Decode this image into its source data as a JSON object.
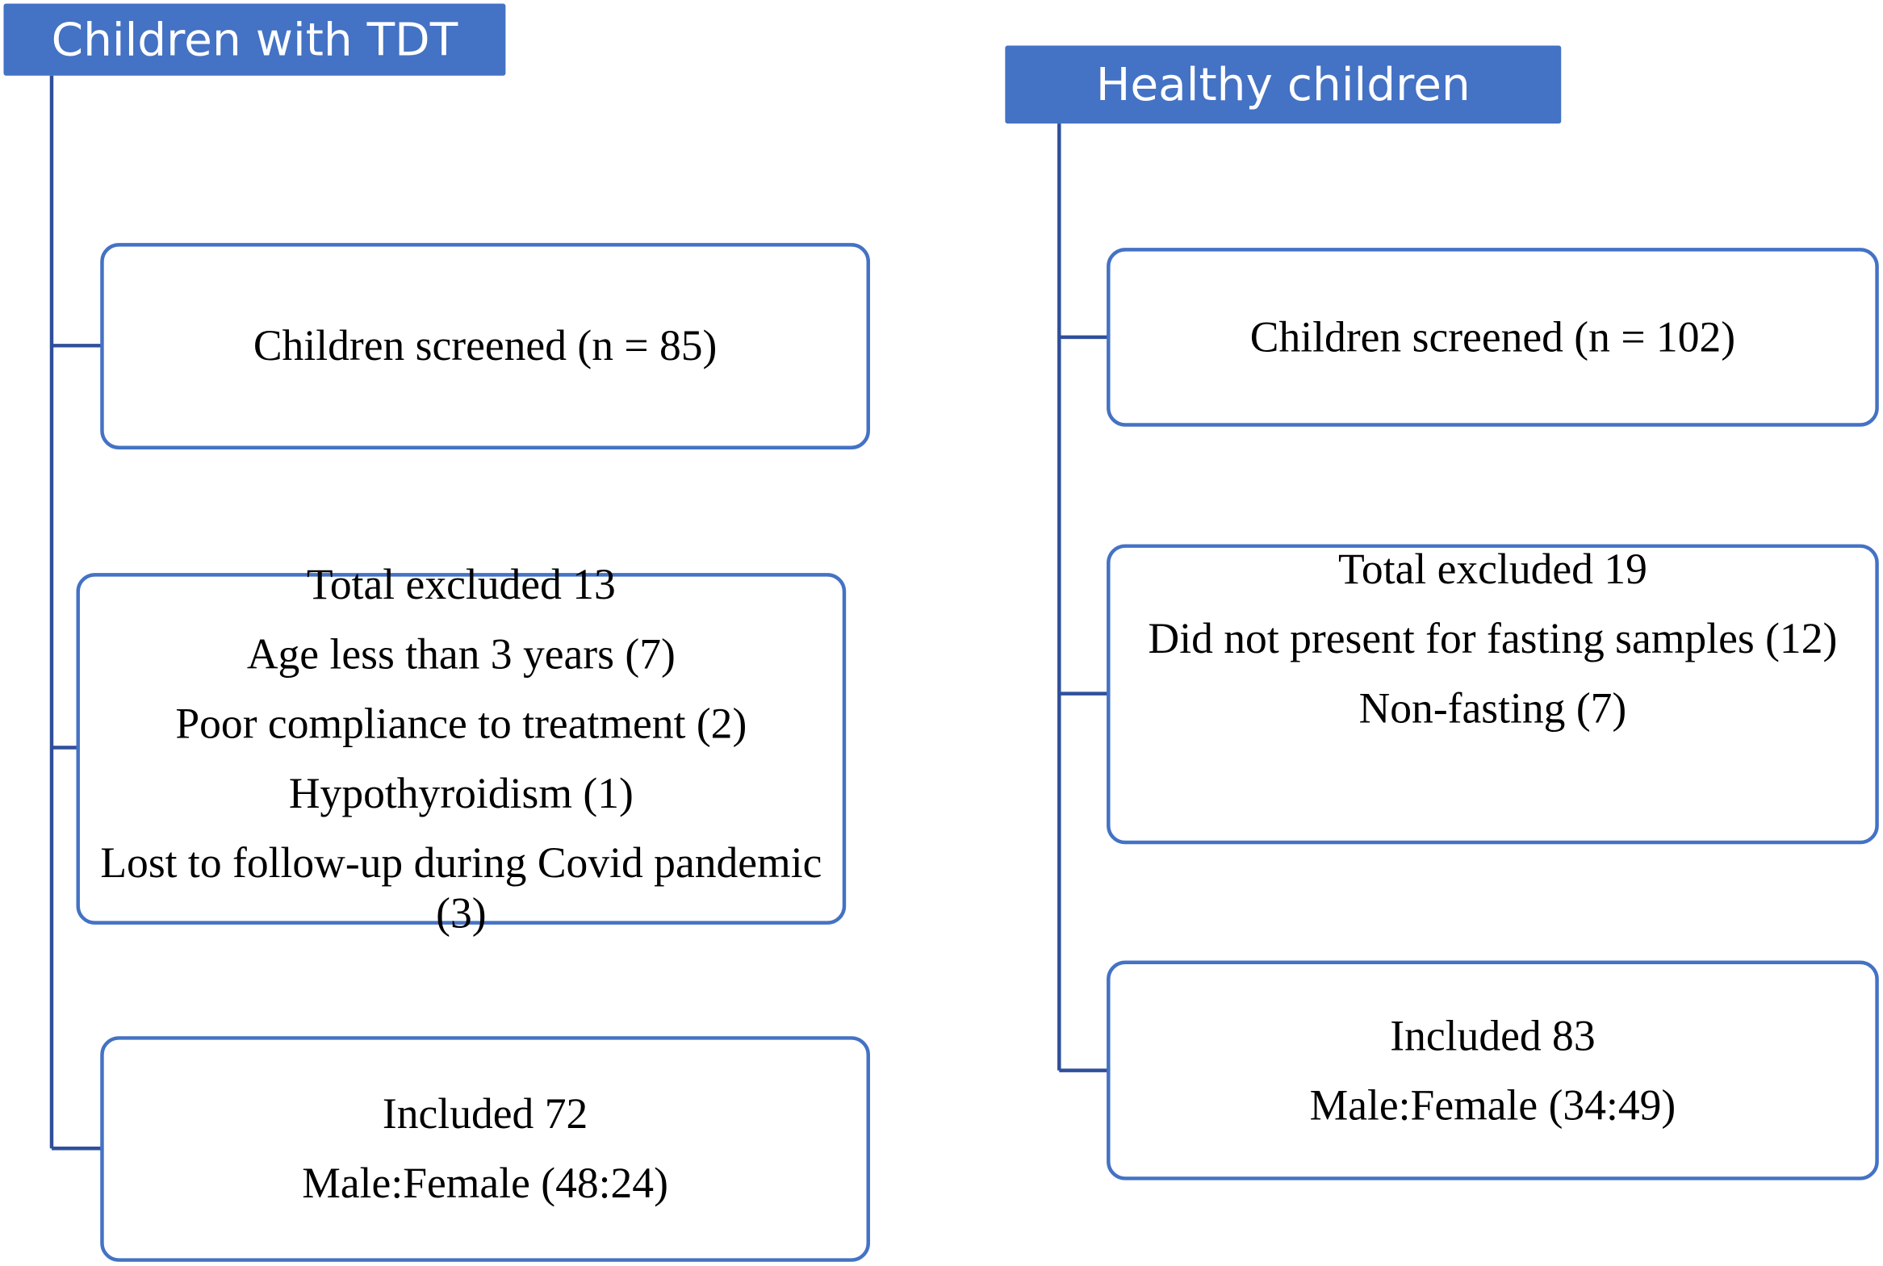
{
  "groups": [
    {
      "title": "Children with TDT",
      "boxes": [
        {
          "lines": [
            "Children screened (n = 85)"
          ]
        },
        {
          "lines": [
            "Total excluded 13",
            "Age less than 3 years (7)",
            "Poor compliance to treatment (2)",
            "Hypothyroidism (1)",
            "Lost to follow-up during Covid pandemic (3)"
          ]
        },
        {
          "lines": [
            "Included 72",
            "Male:Female (48:24)"
          ]
        }
      ]
    },
    {
      "title": "Healthy children",
      "boxes": [
        {
          "lines": [
            "Children screened (n = 102)"
          ]
        },
        {
          "lines": [
            "Total excluded 19",
            "Did not present for fasting samples (12)",
            "Non-fasting (7)"
          ]
        },
        {
          "lines": [
            "Included 83",
            "Male:Female (34:49)"
          ]
        }
      ]
    }
  ]
}
